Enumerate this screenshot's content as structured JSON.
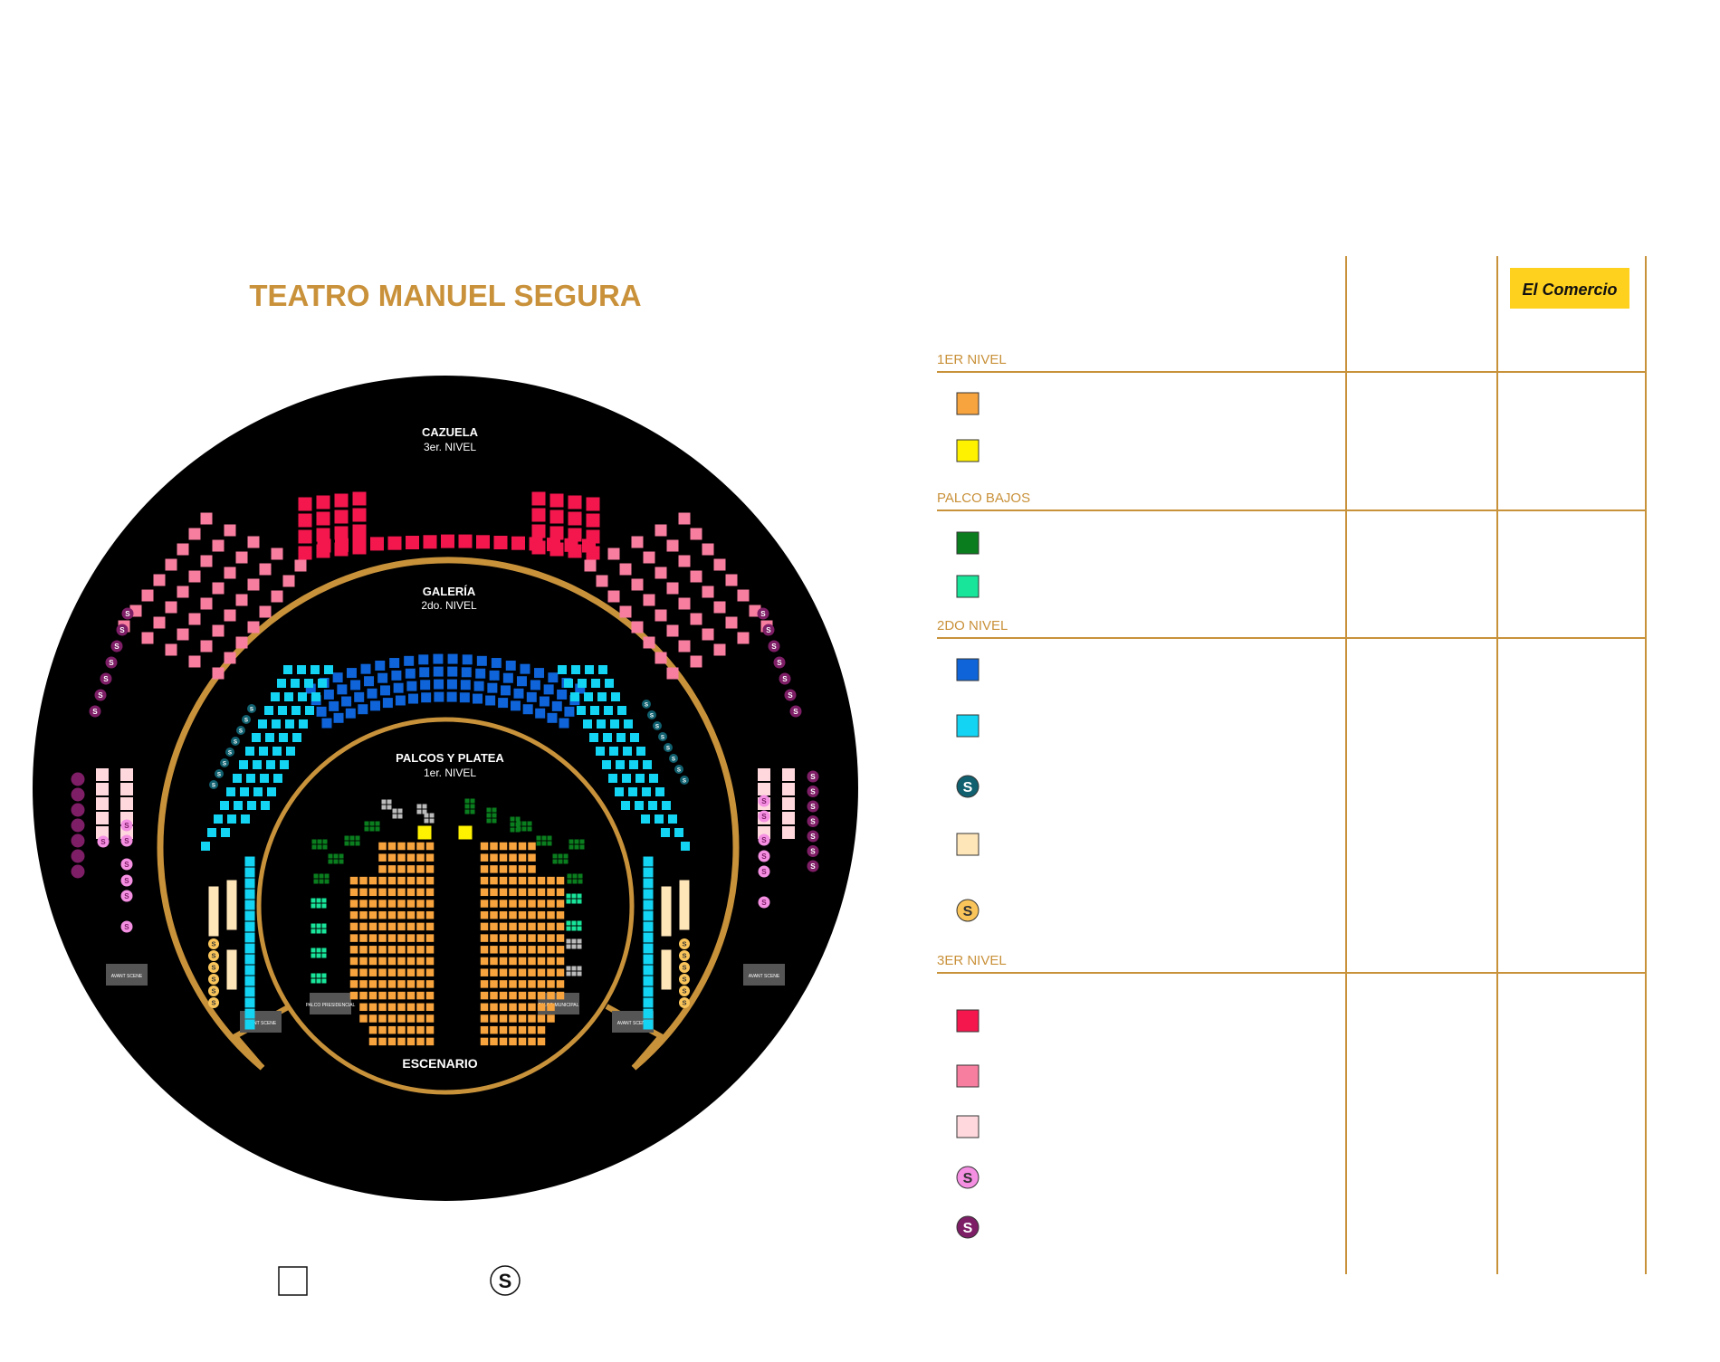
{
  "title": "TEATRO MANUEL SEGURA",
  "brand": "El Comercio",
  "colors": {
    "gold": "#C8923B",
    "title": "#C9913A",
    "black": "#000000",
    "platea": "#F7A33E",
    "presidencial": "#FFF200",
    "palco_verde": "#0A7E1E",
    "palco_menta": "#18E59A",
    "galeria_azul": "#0E64D8",
    "galeria_celeste": "#13D4F2",
    "teal": "#10606F",
    "crema": "#FFE6B8",
    "dorado_s": "#F9C45A",
    "rojo": "#F4174E",
    "rosa": "#F77E9F",
    "rosa_claro": "#FFD8DD",
    "lila": "#F48FE2",
    "morado": "#7E1E66",
    "gris": "#BBBBBB",
    "brand_bg": "#FFD11F"
  },
  "map": {
    "cazuela": "CAZUELA",
    "cazuela_sub": "3er. NIVEL",
    "galeria": "GALERÍA",
    "galeria_sub": "2do. NIVEL",
    "platea": "PALCOS Y PLATEA",
    "platea_sub": "1er. NIVEL",
    "escenario": "ESCENARIO",
    "avant": "AVANT SCENE",
    "palco_presidencial": "PALCO PRESIDENCIAL",
    "palco_municipal": "PALCO MUNICIPAL",
    "seat_symbol": "S"
  },
  "legend": {
    "sections": [
      {
        "title": "1ER NIVEL",
        "items": [
          {
            "icon": "square",
            "color": "#F7A33E"
          },
          {
            "icon": "square",
            "color": "#FFF200"
          }
        ]
      },
      {
        "title": "PALCO BAJOS",
        "items": [
          {
            "icon": "square",
            "color": "#0A7E1E"
          },
          {
            "icon": "square",
            "color": "#18E59A"
          }
        ]
      },
      {
        "title": "2DO NIVEL",
        "items": [
          {
            "icon": "square",
            "color": "#0E64D8"
          },
          {
            "icon": "square",
            "color": "#13D4F2"
          },
          {
            "icon": "circle-s",
            "color": "#10606F"
          },
          {
            "icon": "square",
            "color": "#FFE6B8"
          },
          {
            "icon": "circle-s",
            "color": "#F9C45A"
          }
        ]
      },
      {
        "title": "3ER NIVEL",
        "items": [
          {
            "icon": "square",
            "color": "#F4174E"
          },
          {
            "icon": "square",
            "color": "#F77E9F"
          },
          {
            "icon": "square",
            "color": "#FFD8DD"
          },
          {
            "icon": "circle-s",
            "color": "#F48FE2"
          },
          {
            "icon": "circle-s",
            "color": "#7E1E66"
          }
        ]
      }
    ]
  },
  "bottom_legend": [
    {
      "icon": "square",
      "color": "#FFFFFF"
    },
    {
      "icon": "circle-s",
      "color": "#FFFFFF"
    }
  ]
}
